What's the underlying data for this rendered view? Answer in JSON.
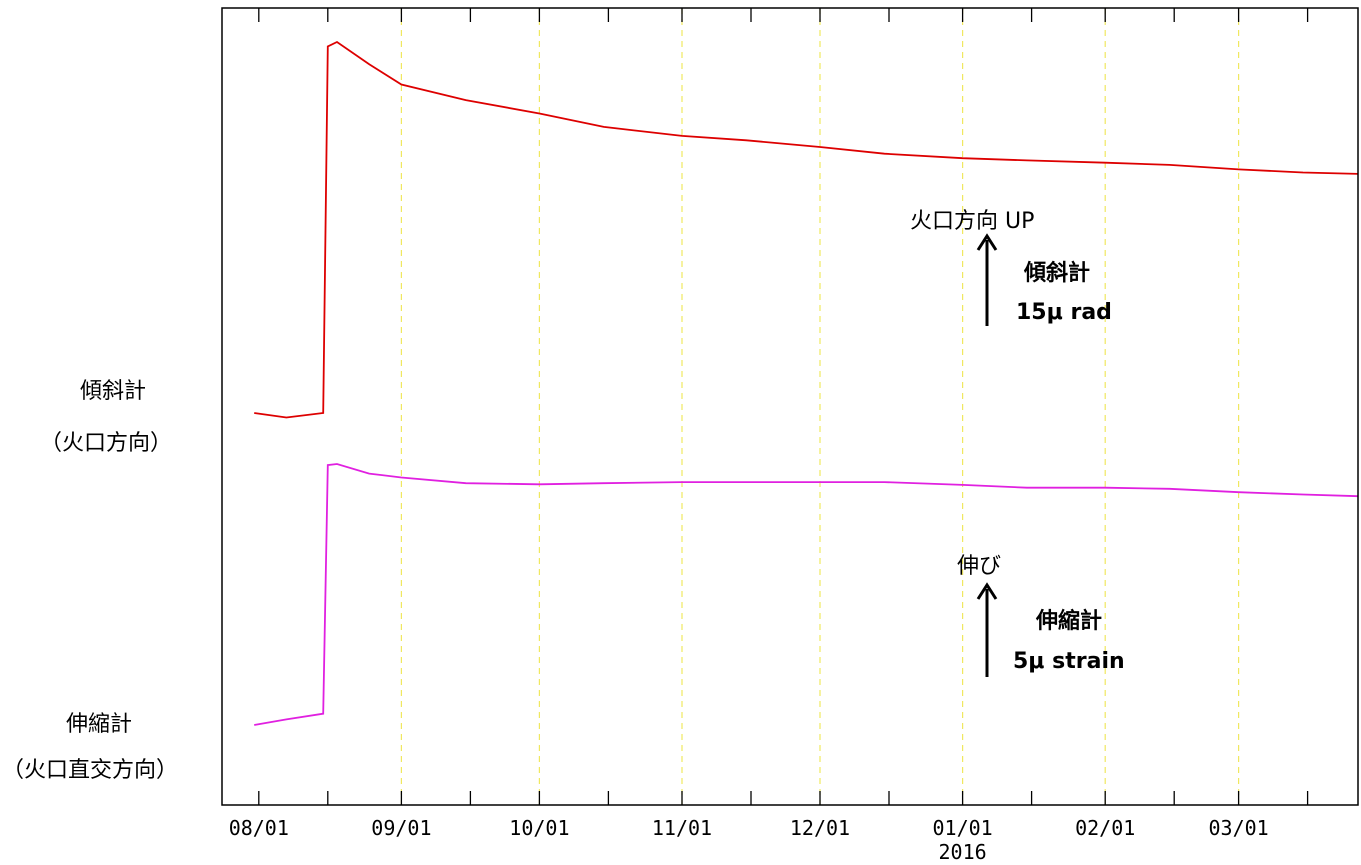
{
  "chart_data": {
    "type": "line",
    "xlabel": "",
    "ylabel": "",
    "x_ticks": [
      "08/01",
      "09/01",
      "10/01",
      "11/01",
      "12/01",
      "01/01",
      "02/01",
      "03/01"
    ],
    "year_label": "2016",
    "grid": true,
    "series": [
      {
        "name": "傾斜計",
        "name_sub": "（火口方向）",
        "color": "#dd0000",
        "unit_label": "15μ rad",
        "direction_label": "火口方向 UP",
        "points": [
          [
            "2015-07-31",
            0.0
          ],
          [
            "2015-08-07",
            -0.1
          ],
          [
            "2015-08-15",
            0.0
          ],
          [
            "2015-08-16",
            8.2
          ],
          [
            "2015-08-18",
            8.3
          ],
          [
            "2015-08-25",
            7.8
          ],
          [
            "2015-09-01",
            7.35
          ],
          [
            "2015-09-15",
            7.0
          ],
          [
            "2015-10-01",
            6.7
          ],
          [
            "2015-10-15",
            6.4
          ],
          [
            "2015-11-01",
            6.2
          ],
          [
            "2015-11-15",
            6.1
          ],
          [
            "2015-12-01",
            5.95
          ],
          [
            "2015-12-15",
            5.8
          ],
          [
            "2016-01-01",
            5.7
          ],
          [
            "2016-01-15",
            5.65
          ],
          [
            "2016-02-01",
            5.6
          ],
          [
            "2016-02-15",
            5.55
          ],
          [
            "2016-03-01",
            5.45
          ],
          [
            "2016-03-15",
            5.38
          ],
          [
            "2016-03-31",
            5.35
          ]
        ]
      },
      {
        "name": "伸縮計",
        "name_sub": "（火口直交方向）",
        "color": "#e020e0",
        "unit_label": "5μ strain",
        "direction_label": "伸び",
        "points": [
          [
            "2015-07-31",
            0.0
          ],
          [
            "2015-08-07",
            0.1
          ],
          [
            "2015-08-15",
            0.2
          ],
          [
            "2015-08-16",
            4.6
          ],
          [
            "2015-08-18",
            4.62
          ],
          [
            "2015-08-25",
            4.45
          ],
          [
            "2015-09-01",
            4.38
          ],
          [
            "2015-09-15",
            4.28
          ],
          [
            "2015-10-01",
            4.26
          ],
          [
            "2015-10-15",
            4.28
          ],
          [
            "2015-11-01",
            4.3
          ],
          [
            "2015-11-15",
            4.3
          ],
          [
            "2015-12-01",
            4.3
          ],
          [
            "2015-12-15",
            4.3
          ],
          [
            "2016-01-01",
            4.25
          ],
          [
            "2016-01-15",
            4.2
          ],
          [
            "2016-02-01",
            4.2
          ],
          [
            "2016-02-15",
            4.18
          ],
          [
            "2016-03-01",
            4.12
          ],
          [
            "2016-03-15",
            4.08
          ],
          [
            "2016-03-31",
            4.05
          ]
        ]
      }
    ]
  },
  "labels": {
    "tilt_name": "傾斜計",
    "tilt_sub": "（火口方向）",
    "strain_name": "伸縮計",
    "strain_sub": "（火口直交方向）",
    "tilt_up": "火口方向 UP",
    "tilt_scale_name": "傾斜計",
    "tilt_scale": "15μ rad",
    "strain_up": "伸び",
    "strain_scale_name": "伸縮計",
    "strain_scale": "5μ strain"
  },
  "colors": {
    "grid": "#f0e860",
    "axis": "#000000"
  }
}
